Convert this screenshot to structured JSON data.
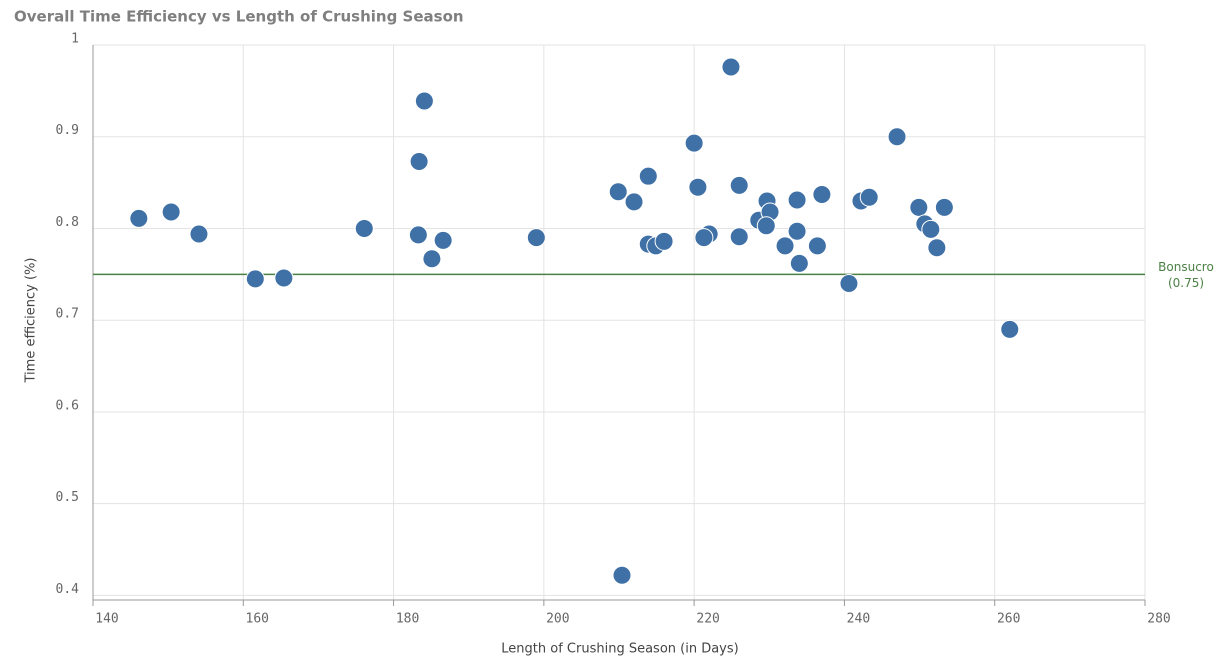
{
  "chart_data": {
    "type": "scatter",
    "title": "Overall Time Efficiency vs Length of Crushing Season",
    "x_label": "Length of Crushing Season (in Days)",
    "y_label": "Time efficiency (%)",
    "xlim": [
      140,
      280
    ],
    "xticks": [
      140,
      160,
      180,
      200,
      220,
      240,
      260,
      280
    ],
    "ylim": [
      0.395,
      1
    ],
    "yticks": [
      0.4,
      0.5,
      0.6,
      0.7,
      0.8,
      0.9,
      1
    ],
    "grid": true,
    "color": "#3f70a6",
    "x": [
      146.1,
      150.4,
      154.1,
      161.6,
      165.4,
      176.1,
      184.1,
      183.4,
      183.3,
      186.6,
      185.1,
      199.0,
      210.4,
      209.9,
      212.0,
      213.9,
      213.9,
      214.9,
      216.0,
      220.0,
      220.5,
      222.0,
      221.3,
      224.9,
      226.0,
      226.0,
      228.6,
      229.7,
      230.1,
      229.6,
      232.1,
      233.7,
      233.7,
      234.0,
      236.4,
      237.0,
      240.6,
      242.2,
      243.3,
      247.0,
      249.9,
      250.7,
      251.5,
      252.3,
      253.3,
      262.0
    ],
    "values": [
      0.811,
      0.818,
      0.794,
      0.745,
      0.746,
      0.8,
      0.939,
      0.873,
      0.793,
      0.787,
      0.767,
      0.79,
      0.422,
      0.84,
      0.829,
      0.857,
      0.783,
      0.781,
      0.786,
      0.893,
      0.845,
      0.794,
      0.79,
      0.976,
      0.847,
      0.791,
      0.809,
      0.83,
      0.818,
      0.803,
      0.781,
      0.831,
      0.797,
      0.762,
      0.781,
      0.837,
      0.74,
      0.83,
      0.834,
      0.9,
      0.823,
      0.805,
      0.799,
      0.779,
      0.823,
      0.69
    ],
    "reference_line": {
      "value": 0.75,
      "label": "Bonsucro",
      "value_label": "(0.75)",
      "color": "#4b8045"
    }
  }
}
